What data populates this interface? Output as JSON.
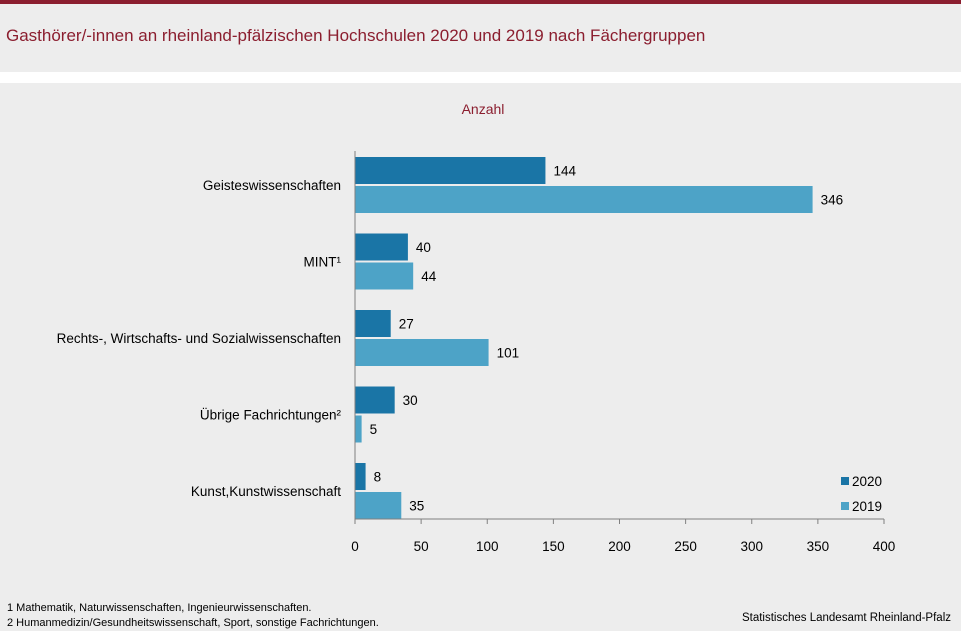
{
  "header": {
    "title": "Gasthörer/-innen an rheinland-pfälzischen Hochschulen 2020 und 2019 nach Fächergruppen"
  },
  "colors": {
    "brand": "#8b1e2f",
    "series_2020": "#1a75a6",
    "series_2019": "#4da3c7"
  },
  "chart_data": {
    "type": "bar",
    "orientation": "horizontal",
    "title": "Anzahl",
    "categories": [
      "Geisteswissenschaften",
      "MINT¹",
      "Rechts-, Wirtschafts- und Sozialwissenschaften",
      "Übrige Fachrichtungen²",
      "Kunst,Kunstwissenschaft"
    ],
    "series": [
      {
        "name": "2020",
        "values": [
          144,
          40,
          27,
          30,
          8
        ]
      },
      {
        "name": "2019",
        "values": [
          346,
          44,
          101,
          5,
          35
        ]
      }
    ],
    "xlim": [
      0,
      400
    ],
    "xticks": [
      "0",
      "50",
      "100",
      "150",
      "200",
      "250",
      "300",
      "350",
      "400"
    ],
    "grid": false,
    "legend_position": "bottom-right",
    "data_labels": true
  },
  "footnotes": [
    "1 Mathematik, Naturwissenschaften,  Ingenieurwissenschaften.",
    "2 Humanmedizin/Gesundheitswissenschaft,  Sport,  sonstige Fachrichtungen."
  ],
  "source": "Statistisches Landesamt Rheinland-Pfalz"
}
